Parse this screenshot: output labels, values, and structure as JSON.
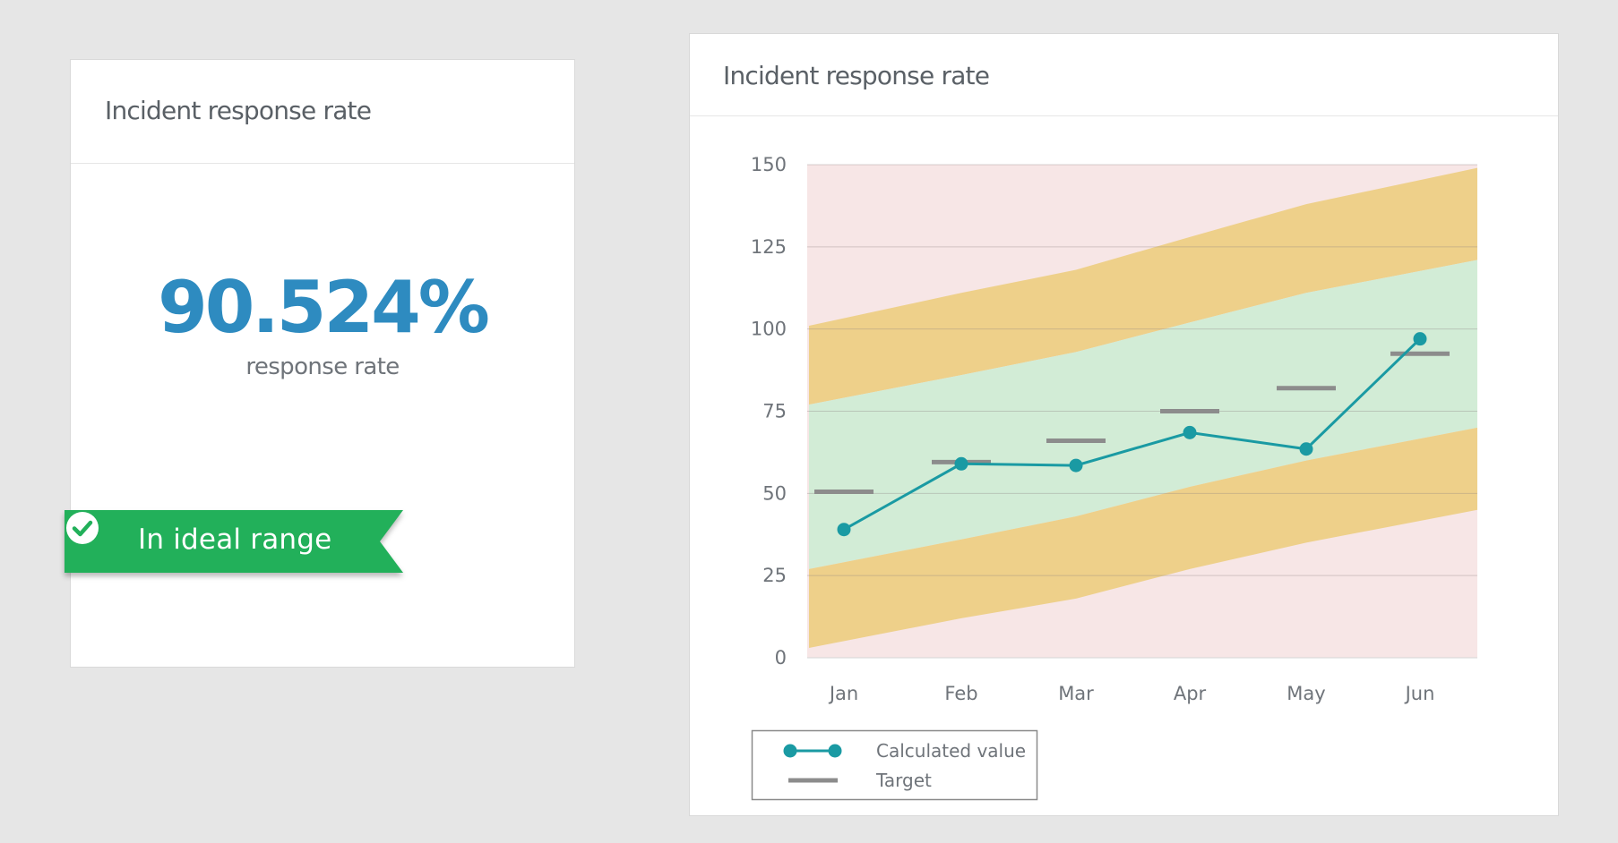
{
  "kpi": {
    "title": "Incident response rate",
    "value": "90.524%",
    "label": "response rate",
    "status": "In ideal range",
    "status_color": "#22b05a"
  },
  "chart_card": {
    "title": "Incident response rate"
  },
  "chart_data": {
    "type": "line",
    "title": "Incident response rate",
    "categories": [
      "Jan",
      "Feb",
      "Mar",
      "Apr",
      "May",
      "Jun"
    ],
    "ylim": [
      0,
      150
    ],
    "yticks": [
      0,
      25,
      50,
      75,
      100,
      125,
      150
    ],
    "grid": true,
    "series": [
      {
        "name": "Calculated value",
        "values": [
          39,
          59,
          58.5,
          68.5,
          63.5,
          97
        ],
        "color": "#1a9aa3",
        "marker": "circle"
      },
      {
        "name": "Target",
        "values": [
          50.5,
          59.5,
          66,
          75,
          82,
          92.5
        ],
        "color": "#8c8c8c",
        "marker": "dash"
      }
    ],
    "bands": {
      "x": [
        0,
        1,
        2,
        3,
        4,
        5
      ],
      "upper_warning_top": [
        150,
        150,
        150,
        150,
        150,
        150
      ],
      "upper_warning_bottom": [
        101,
        111,
        118,
        128,
        138,
        149
      ],
      "ideal_top": [
        77,
        86,
        93,
        102,
        111,
        121
      ],
      "ideal_bottom": [
        27,
        36,
        43,
        52,
        60,
        70
      ],
      "lower_warning_bottom": [
        3,
        12,
        18,
        27,
        35,
        45
      ],
      "colors": {
        "danger": "#f7e6e6",
        "warning": "#eed08a",
        "ideal": "#d2ecd6"
      }
    },
    "legend": {
      "position": "bottom-left",
      "entries": [
        "Calculated value",
        "Target"
      ]
    }
  }
}
